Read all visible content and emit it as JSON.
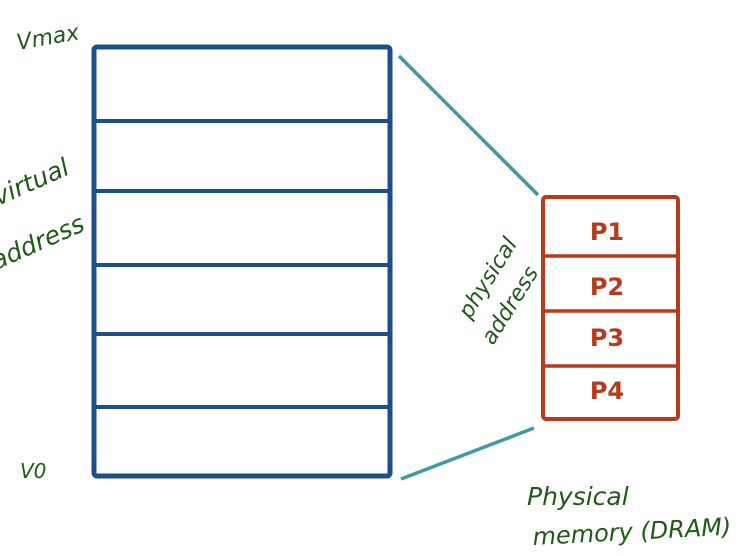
{
  "labels": {
    "vmax": "Vmax",
    "v0": "V0",
    "virtual_line1": "virtual",
    "virtual_line2": "address",
    "physical_addr_line1": "physical",
    "physical_addr_line2": "address",
    "physical_mem_line1": "Physical",
    "physical_mem_line2": "memory (DRAM)"
  },
  "physical_pages": [
    "P1",
    "P2",
    "P3",
    "P4"
  ],
  "colors": {
    "virtual_block": "#1c4f87",
    "physical_block": "#b83a1e",
    "mapping_lines": "#3f9aa2",
    "handwriting": "#1f5a17"
  }
}
